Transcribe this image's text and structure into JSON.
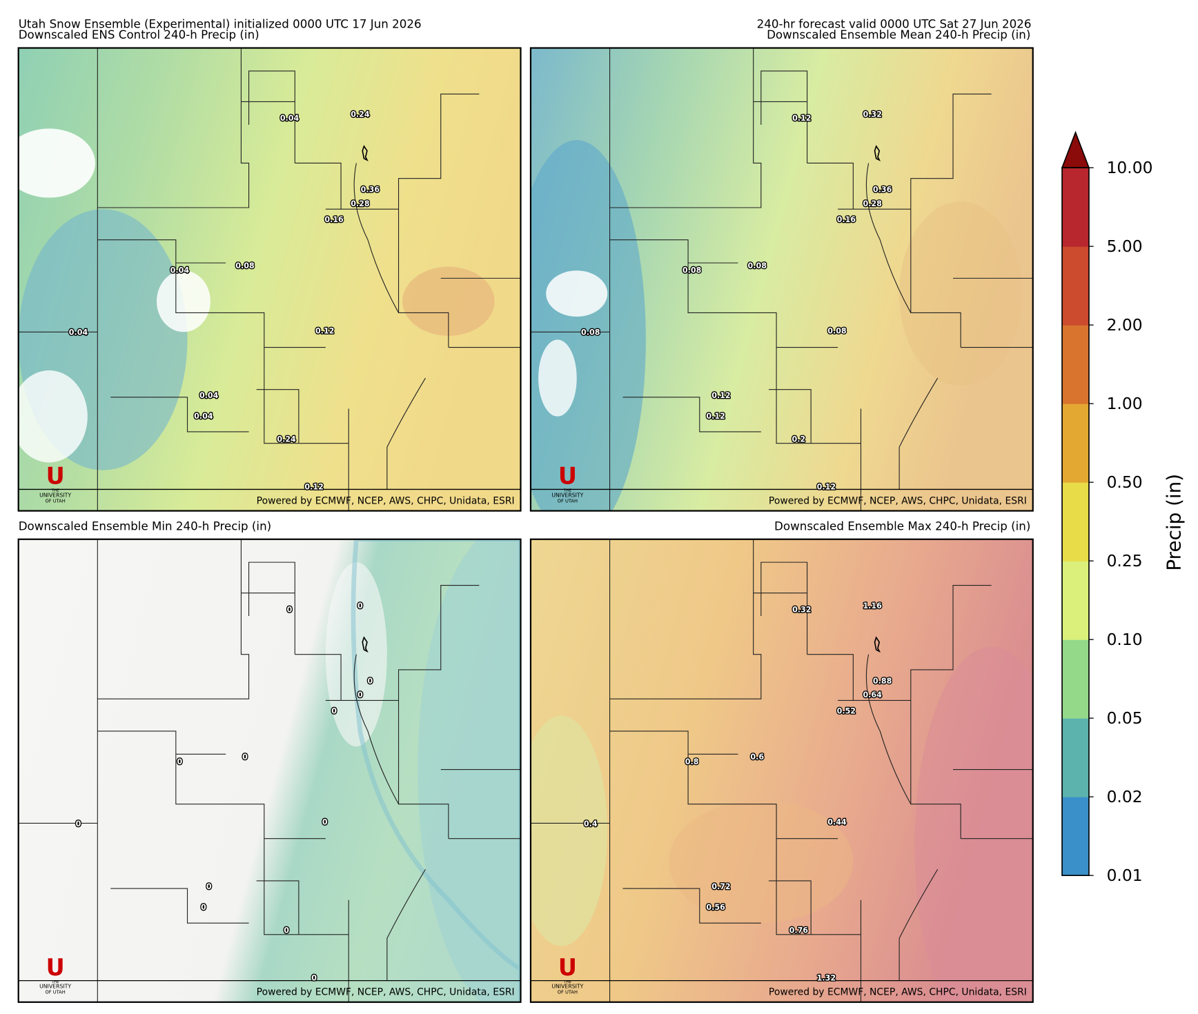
{
  "header": {
    "run": "Utah Snow Ensemble (Experimental) initialized 0000 UTC 17 Jun 2026",
    "valid": "240-hr forecast valid 0000 UTC Sat 27 Jun 2026"
  },
  "panels": [
    {
      "title": "Downscaled ENS Control 240-h Precip (in)",
      "labels": [
        "0.04",
        "0.24",
        "0.36",
        "0.28",
        "0.16",
        "0.04",
        "0.08",
        "0.04",
        "0.12",
        "0.04",
        "0.04",
        "0.24",
        "0.12"
      ]
    },
    {
      "title": "Downscaled Ensemble Mean 240-h Precip (in)",
      "labels": [
        "0.12",
        "0.32",
        "0.36",
        "0.28",
        "0.16",
        "0.08",
        "0.08",
        "0.08",
        "0.08",
        "0.12",
        "0.12",
        "0.2",
        "0.12"
      ]
    },
    {
      "title": "Downscaled Ensemble Min 240-h Precip (in)",
      "labels": [
        "0",
        "0",
        "0",
        "0",
        "0",
        "0",
        "0",
        "0",
        "0",
        "0",
        "0",
        "0",
        "0"
      ]
    },
    {
      "title": "Downscaled Ensemble Max 240-h Precip (in)",
      "labels": [
        "0.32",
        "1.16",
        "0.88",
        "0.64",
        "0.52",
        "0.8",
        "0.6",
        "0.4",
        "0.44",
        "0.72",
        "0.56",
        "0.76",
        "1.32"
      ]
    }
  ],
  "credit": "Powered by ECMWF, NCEP, AWS, CHPC, Unidata, ESRI",
  "logo": {
    "letter": "U",
    "the": "THE",
    "name": "UNIVERSITY",
    "of": "OF UTAH"
  },
  "colorbar": {
    "label": "Precip (in)",
    "ticks": [
      "0.01",
      "0.02",
      "0.05",
      "0.10",
      "0.25",
      "0.50",
      "1.00",
      "2.00",
      "5.00",
      "10.00"
    ],
    "colors": [
      "#3a90c8",
      "#5cb3ad",
      "#94d98a",
      "#daf07a",
      "#e8dc48",
      "#e3a832",
      "#d8742e",
      "#cc4a2e",
      "#b7272d"
    ],
    "extend_color": "#8b0a0a"
  }
}
